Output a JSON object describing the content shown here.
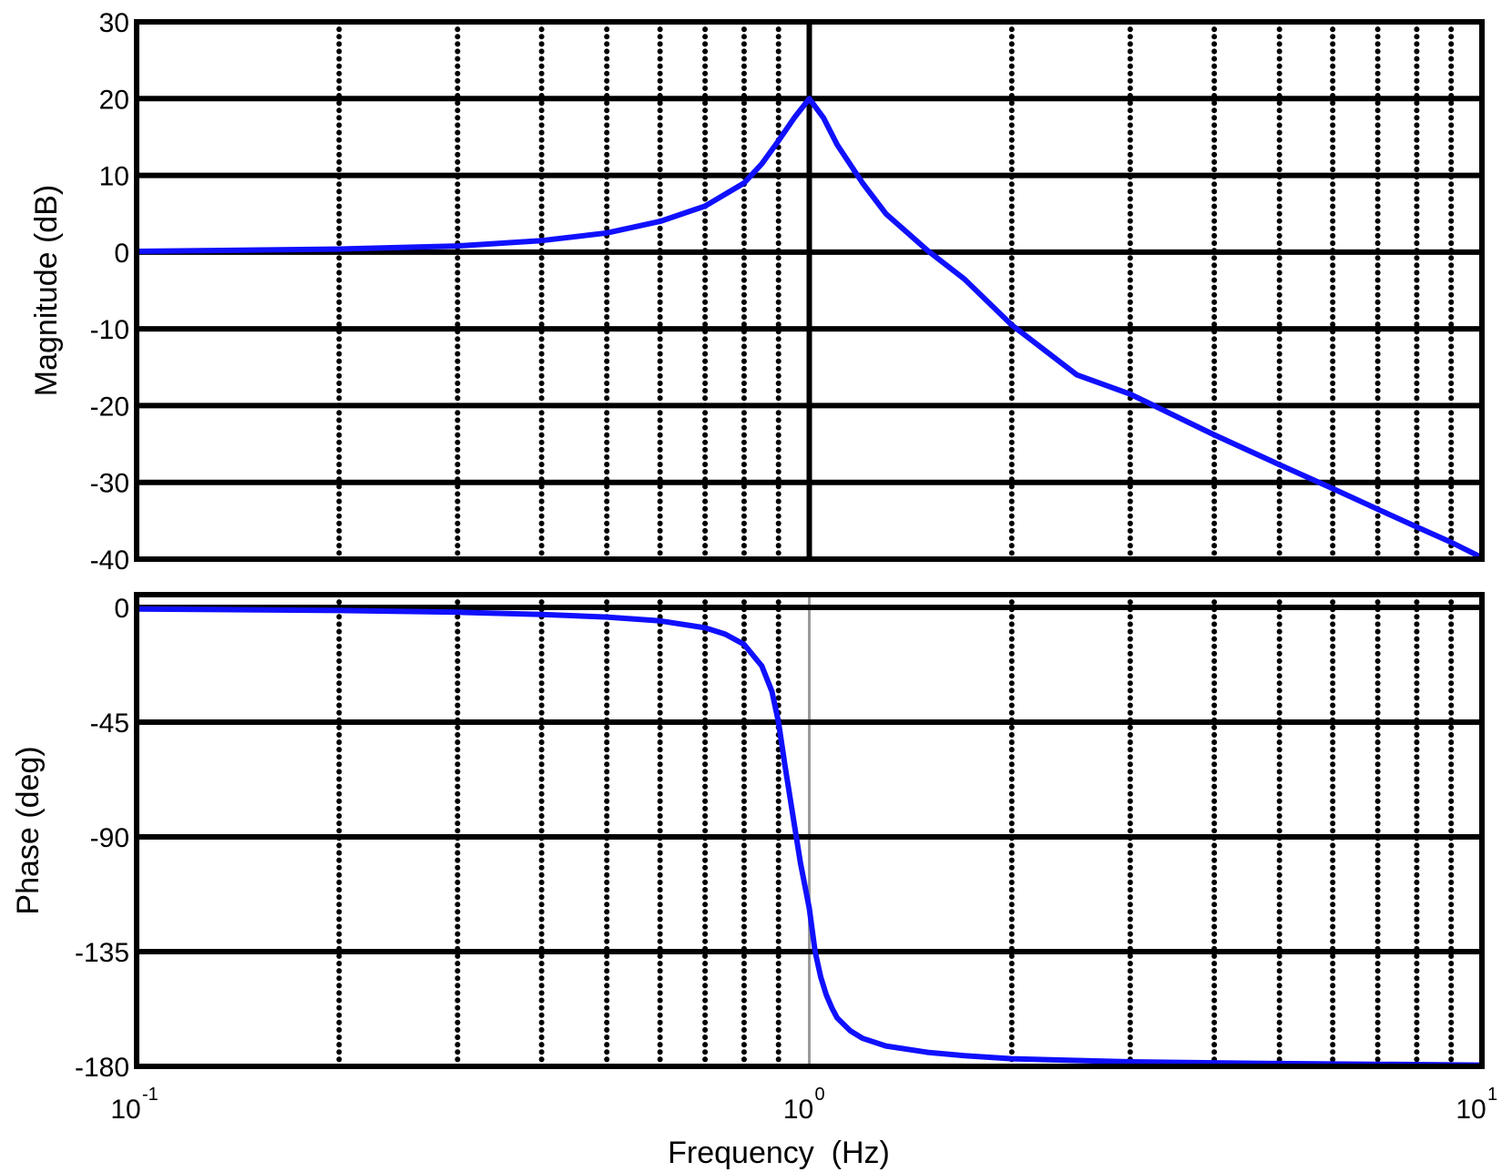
{
  "colors": {
    "line": "#1010ff",
    "frame": "#000000",
    "grid_major": "#000000",
    "grid_minor": "#000000",
    "crossover": "#9a9a9a"
  },
  "chart_data": [
    {
      "type": "line",
      "title": "",
      "xlabel": "",
      "ylabel": "Magnitude (dB)",
      "xscale": "log",
      "xlim": [
        0.1,
        10
      ],
      "ylim": [
        -40,
        30
      ],
      "yticks": [
        30,
        20,
        10,
        0,
        -10,
        -20,
        -30,
        -40
      ],
      "yticklabels": [
        "30",
        "20",
        "10",
        "0",
        "-10",
        "-20",
        "-30",
        "-40"
      ],
      "grid": true,
      "series": [
        {
          "x": [
            0.1,
            0.2,
            0.3,
            0.4,
            0.5,
            0.6,
            0.7,
            0.8,
            0.85,
            0.9,
            0.95,
            1.0,
            1.05,
            1.1,
            1.2,
            1.3,
            1.5,
            1.7,
            2,
            2.5,
            3,
            4,
            5,
            6,
            7,
            8,
            9,
            10
          ],
          "y": [
            0.1,
            0.4,
            0.8,
            1.5,
            2.5,
            4.0,
            6.0,
            9.0,
            11.5,
            14.5,
            17.5,
            20.0,
            17.5,
            14.0,
            9.0,
            5.0,
            0.2,
            -3.5,
            -9.5,
            -16.0,
            -18.5,
            -23.8,
            -27.7,
            -30.8,
            -33.5,
            -35.8,
            -37.8,
            -39.8
          ]
        }
      ]
    },
    {
      "type": "line",
      "title": "",
      "xlabel": "Frequency  (Hz)",
      "ylabel": "Phase (deg)",
      "xscale": "log",
      "xlim": [
        0.1,
        10
      ],
      "ylim": [
        -180,
        5
      ],
      "xticks": [
        0.1,
        1,
        10
      ],
      "xtick_base": "10",
      "xtick_exponents": [
        "-1",
        "0",
        "1"
      ],
      "yticks": [
        0,
        -45,
        -90,
        -135,
        -180
      ],
      "yticklabels": [
        "0",
        "-45",
        "-90",
        "-135",
        "-180"
      ],
      "grid": true,
      "series": [
        {
          "x": [
            0.1,
            0.2,
            0.3,
            0.4,
            0.5,
            0.6,
            0.7,
            0.75,
            0.8,
            0.85,
            0.88,
            0.9,
            0.92,
            0.95,
            0.97,
            1.0,
            1.02,
            1.04,
            1.06,
            1.08,
            1.1,
            1.15,
            1.2,
            1.3,
            1.5,
            1.7,
            2,
            3,
            5,
            10
          ],
          "y": [
            -0.6,
            -1.2,
            -1.9,
            -2.8,
            -3.8,
            -5.3,
            -8.0,
            -10.5,
            -14.5,
            -23.0,
            -33.0,
            -45.0,
            -62.0,
            -85.0,
            -100.0,
            -118.0,
            -135.0,
            -145.0,
            -152.0,
            -157.0,
            -161.0,
            -166.0,
            -169.0,
            -172.0,
            -174.5,
            -175.8,
            -177.0,
            -178.2,
            -178.9,
            -179.5
          ]
        }
      ]
    }
  ]
}
